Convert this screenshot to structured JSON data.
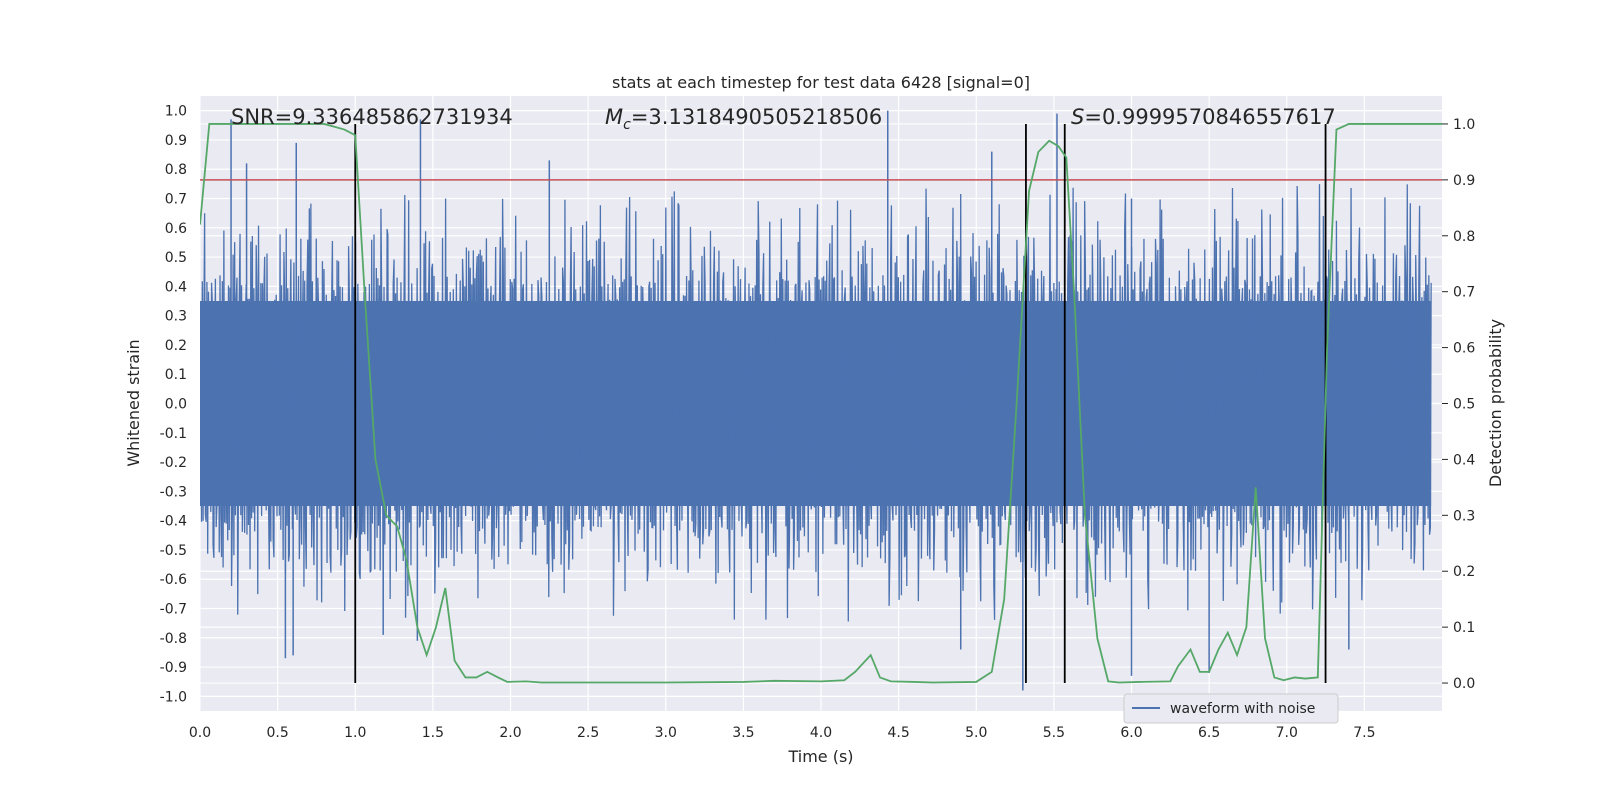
{
  "chart_data": {
    "type": "line",
    "title": "stats at each timestep for test data 6428 [signal=0]",
    "xlabel": "Time (s)",
    "ylabel_left": "Whitened strain",
    "ylabel_right": "Detection probability",
    "xlim": [
      0,
      8
    ],
    "ylim_left": [
      -1.05,
      1.05
    ],
    "ylim_right": [
      -0.05,
      1.05
    ],
    "x_ticks": [
      "0.0",
      "0.5",
      "1.0",
      "1.5",
      "2.0",
      "2.5",
      "3.0",
      "3.5",
      "4.0",
      "4.5",
      "5.0",
      "5.5",
      "6.0",
      "6.5",
      "7.0",
      "7.5"
    ],
    "y_ticks_left": [
      "-1.0",
      "-0.9",
      "-0.8",
      "-0.7",
      "-0.6",
      "-0.5",
      "-0.4",
      "-0.3",
      "-0.2",
      "-0.1",
      "0.0",
      "0.1",
      "0.2",
      "0.3",
      "0.4",
      "0.5",
      "0.6",
      "0.7",
      "0.8",
      "0.9",
      "1.0"
    ],
    "y_ticks_right": [
      "0.0",
      "0.1",
      "0.2",
      "0.3",
      "0.4",
      "0.5",
      "0.6",
      "0.7",
      "0.8",
      "0.9",
      "1.0"
    ],
    "grid": true,
    "legend": {
      "position": "lower-right",
      "entries": [
        "waveform with noise"
      ]
    },
    "annotations": {
      "snr": "SNR=9.336485862731934",
      "mc_symbol": "M",
      "mc_sub": "c",
      "mc_value": "=3.1318490505218506",
      "s_symbol": "S",
      "s_value": "=0.9999570846557617"
    },
    "threshold": {
      "value": 0.9,
      "axis": "right",
      "color": "#c44e52"
    },
    "vertical_markers": [
      1.0,
      5.32,
      5.57,
      7.25
    ],
    "series": [
      {
        "name": "waveform with noise",
        "axis": "left",
        "color": "#4c72b0",
        "kind": "noise",
        "band_half_width": 0.35,
        "sample_count": 1600,
        "peak_high": [
          [
            0.2,
            0.97
          ],
          [
            0.3,
            0.82
          ],
          [
            0.62,
            0.89
          ],
          [
            1.42,
            0.97
          ],
          [
            2.25,
            0.83
          ],
          [
            4.43,
            1.0
          ],
          [
            5.1,
            0.86
          ],
          [
            5.52,
            0.99
          ],
          [
            6.0,
            0.7
          ],
          [
            7.25,
            0.76
          ]
        ],
        "peak_low": [
          [
            0.55,
            -0.87
          ],
          [
            0.6,
            -0.86
          ],
          [
            1.4,
            -0.81
          ],
          [
            5.3,
            -0.98
          ],
          [
            6.0,
            -0.93
          ],
          [
            6.5,
            -0.92
          ],
          [
            4.9,
            -0.84
          ],
          [
            7.4,
            -0.84
          ],
          [
            1.18,
            -0.79
          ]
        ]
      },
      {
        "name": "Detection probability",
        "axis": "right",
        "color": "#55a868",
        "kind": "line",
        "x": [
          0.0,
          0.06,
          0.2,
          0.5,
          0.8,
          0.93,
          1.0,
          1.06,
          1.13,
          1.2,
          1.27,
          1.33,
          1.4,
          1.46,
          1.52,
          1.58,
          1.64,
          1.71,
          1.78,
          1.85,
          1.92,
          1.98,
          2.1,
          2.2,
          2.5,
          3.0,
          3.5,
          3.7,
          4.0,
          4.15,
          4.22,
          4.32,
          4.38,
          4.45,
          4.6,
          4.72,
          5.0,
          5.1,
          5.18,
          5.26,
          5.34,
          5.4,
          5.47,
          5.53,
          5.58,
          5.63,
          5.7,
          5.78,
          5.85,
          5.92,
          6.05,
          6.25,
          6.3,
          6.38,
          6.44,
          6.5,
          6.56,
          6.62,
          6.68,
          6.74,
          6.8,
          6.86,
          6.92,
          6.98,
          7.05,
          7.12,
          7.2,
          7.26,
          7.32,
          7.4,
          7.5,
          8.0
        ],
        "y": [
          0.82,
          1.0,
          1.0,
          1.0,
          1.0,
          0.99,
          0.98,
          0.7,
          0.4,
          0.3,
          0.28,
          0.22,
          0.1,
          0.05,
          0.1,
          0.17,
          0.04,
          0.01,
          0.01,
          0.02,
          0.01,
          0.002,
          0.003,
          0.001,
          0.001,
          0.001,
          0.002,
          0.004,
          0.003,
          0.005,
          0.02,
          0.05,
          0.01,
          0.003,
          0.002,
          0.001,
          0.002,
          0.02,
          0.15,
          0.5,
          0.88,
          0.95,
          0.97,
          0.96,
          0.94,
          0.7,
          0.3,
          0.08,
          0.003,
          0.001,
          0.002,
          0.003,
          0.03,
          0.06,
          0.02,
          0.02,
          0.06,
          0.09,
          0.05,
          0.1,
          0.35,
          0.08,
          0.01,
          0.005,
          0.01,
          0.008,
          0.01,
          0.6,
          0.99,
          1.0,
          1.0,
          1.0
        ]
      }
    ]
  }
}
